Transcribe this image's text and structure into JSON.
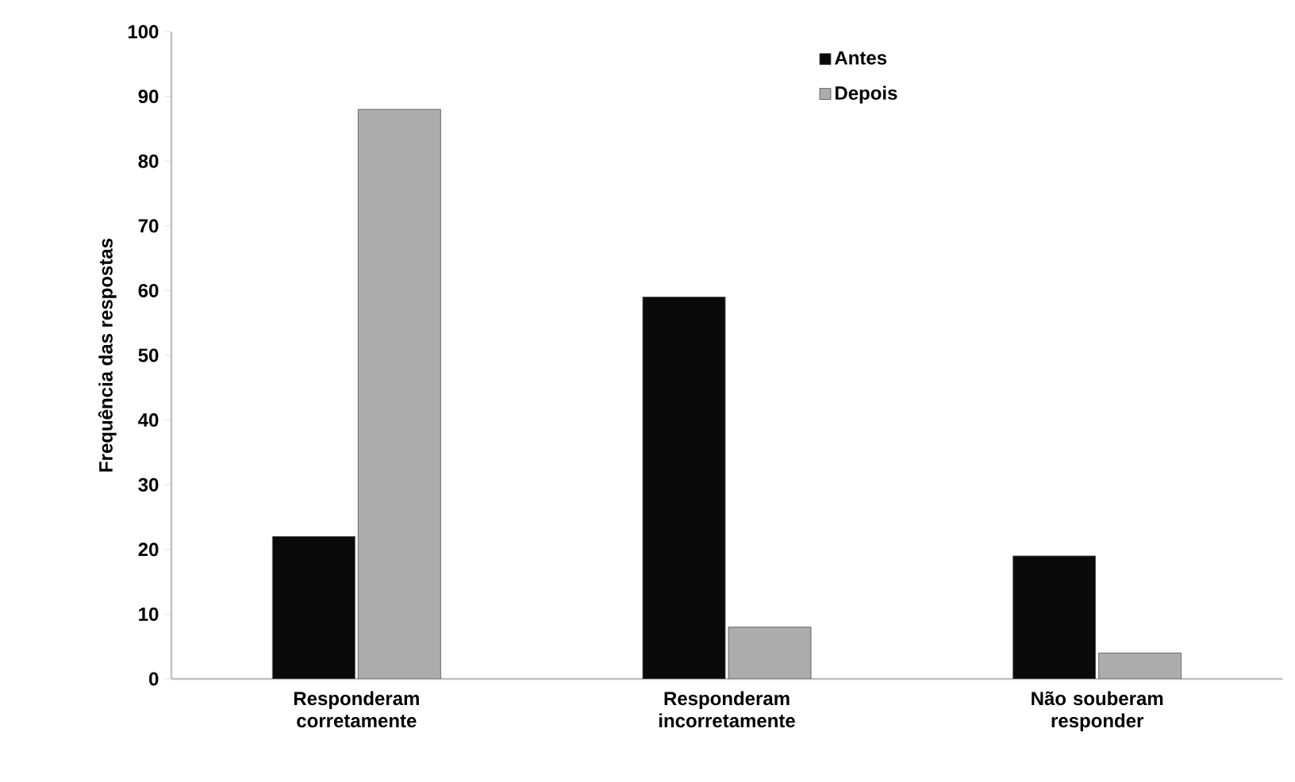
{
  "chart_data": {
    "type": "bar",
    "ylabel": "Frequência das respostas",
    "categories": [
      "Responderam corretamente",
      "Responderam incorretamente",
      "Não souberam responder"
    ],
    "series": [
      {
        "name": "Antes",
        "color": "#0a0a0a",
        "values": [
          22,
          59,
          19
        ]
      },
      {
        "name": "Depois",
        "color": "#acacac",
        "values": [
          88,
          8,
          4
        ]
      }
    ],
    "ylim": [
      0,
      100
    ],
    "yticks": [
      0,
      10,
      20,
      30,
      40,
      50,
      60,
      70,
      80,
      90,
      100
    ],
    "legend": "top",
    "grid": false
  }
}
